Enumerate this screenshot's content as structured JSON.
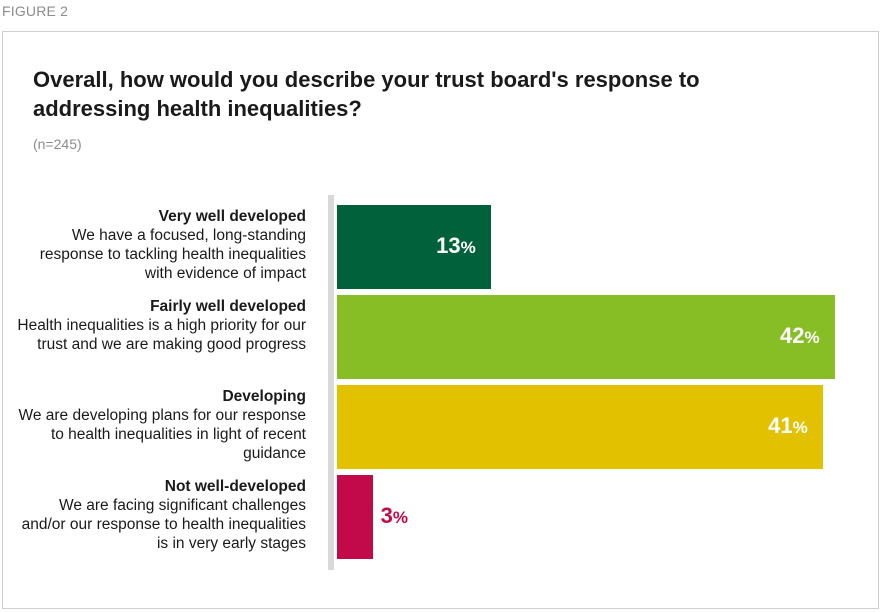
{
  "figure_label": "FIGURE 2",
  "chart_data": {
    "type": "bar",
    "orientation": "horizontal",
    "title": "Overall, how would you describe your trust board's response to addressing health inequalities?",
    "subtitle": "(n=245)",
    "unit": "%",
    "xlim": [
      0,
      100
    ],
    "categories": [
      {
        "label": "Very well developed",
        "description": "We have a focused, long-standing response to tackling health inequalities with evidence of impact",
        "value": 13,
        "color": "#00613a",
        "label_color": "#ffffff"
      },
      {
        "label": "Fairly well developed",
        "description": "Health inequalities is a high priority for our trust and we are making good progress",
        "value": 42,
        "color": "#87bd25",
        "label_color": "#ffffff"
      },
      {
        "label": "Developing",
        "description": "We are developing plans for our response to health inequalities in light of recent guidance",
        "value": 41,
        "color": "#e2c100",
        "label_color": "#ffffff"
      },
      {
        "label": "Not well-developed",
        "description": "We are facing significant challenges and/or our response to health inequalities is in very early stages",
        "value": 3,
        "color": "#c2094a",
        "label_color": "#c2094a"
      }
    ]
  }
}
